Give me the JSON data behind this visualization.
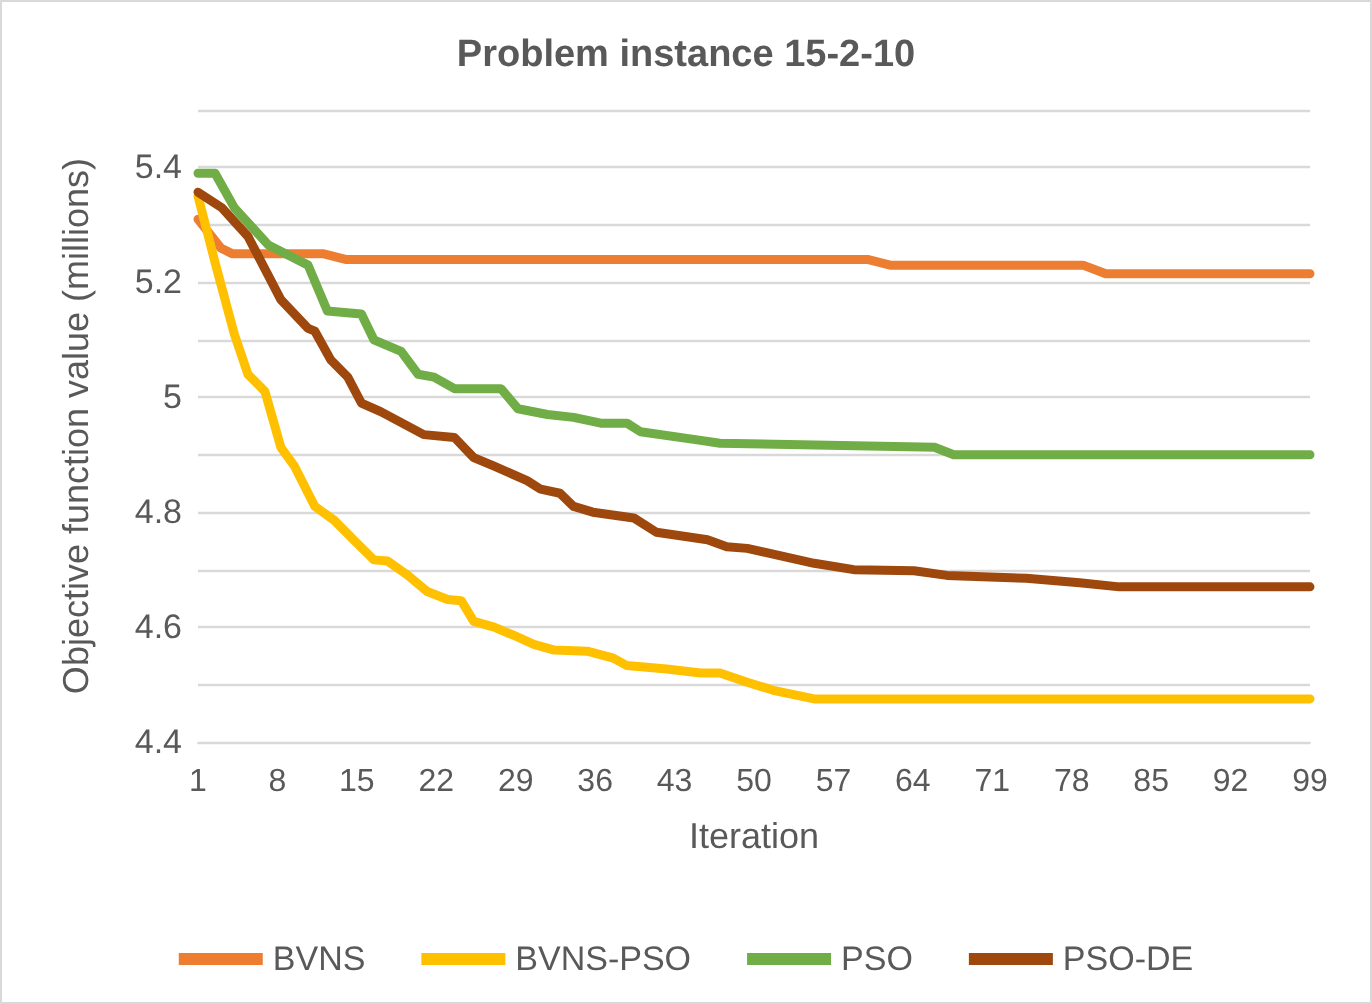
{
  "chart_data": {
    "type": "line",
    "title": "Problem instance 15-2-10",
    "xlabel": "Iteration",
    "ylabel": "Objective function value (millions)",
    "xlim": [
      1,
      99
    ],
    "xticks": [
      1,
      8,
      15,
      22,
      29,
      36,
      43,
      50,
      57,
      64,
      71,
      78,
      85,
      92,
      99
    ],
    "ylim": [
      4.4,
      5.5
    ],
    "yticks": [
      4.4,
      {
        "value": 4.5,
        "label": null
      },
      4.6,
      {
        "value": 4.7,
        "label": null
      },
      4.8,
      {
        "value": 4.9,
        "label": null
      },
      5,
      {
        "value": 5.1,
        "label": null
      },
      5.2,
      {
        "value": 5.3,
        "label": null
      },
      5.4,
      {
        "value": 5.5,
        "label": null
      }
    ],
    "grid": "y",
    "legend": "bottom",
    "marker": "none",
    "line_style": "solid",
    "series": [
      {
        "name": "BVNS",
        "color": "#ed7d31",
        "x": [
          1,
          3,
          4,
          12,
          14,
          60,
          62,
          79,
          81,
          99
        ],
        "values": [
          5.31,
          5.26,
          5.25,
          5.25,
          5.24,
          5.24,
          5.23,
          5.23,
          5.215,
          5.215
        ]
      },
      {
        "name": "BVNS-PSO",
        "color": "#ffc000",
        "x": [
          1,
          2.5,
          4.2,
          5.4,
          6.9,
          8.3,
          9.5,
          11.3,
          13,
          14.8,
          16.5,
          17.7,
          19.5,
          21.2,
          23,
          24.2,
          25.3,
          27.1,
          28.9,
          30.6,
          32.4,
          35.3,
          37.6,
          38.8,
          42.3,
          45.3,
          47,
          49.4,
          51.7,
          55.3,
          99
        ],
        "values": [
          5.35,
          5.235,
          5.11,
          5.04,
          5.01,
          4.913,
          4.88,
          4.81,
          4.786,
          4.75,
          4.717,
          4.715,
          4.69,
          4.662,
          4.648,
          4.646,
          4.61,
          4.6,
          4.585,
          4.57,
          4.56,
          4.558,
          4.546,
          4.533,
          4.527,
          4.52,
          4.52,
          4.504,
          4.49,
          4.475,
          4.475
        ]
      },
      {
        "name": "PSO",
        "color": "#70ad47",
        "x": [
          1,
          2.5,
          4.2,
          7.2,
          10.7,
          12.4,
          15.4,
          16.5,
          18.9,
          20.4,
          21.8,
          23.6,
          27.7,
          29.2,
          31.8,
          34.1,
          36.5,
          38.8,
          40,
          45.3,
          47,
          65.9,
          67.6,
          99
        ],
        "values": [
          5.39,
          5.39,
          5.33,
          5.265,
          5.23,
          5.15,
          5.145,
          5.1,
          5.08,
          5.04,
          5.035,
          5.015,
          5.015,
          4.98,
          4.97,
          4.965,
          4.955,
          4.955,
          4.94,
          4.925,
          4.92,
          4.913,
          4.9,
          4.9
        ]
      },
      {
        "name": "PSO-DE",
        "color": "#9e480e",
        "x": [
          1,
          3.1,
          5.4,
          8.3,
          10.7,
          11.3,
          12.7,
          14.2,
          15.4,
          17.1,
          20.9,
          23.6,
          25.3,
          27.1,
          30,
          31.2,
          32.9,
          34.1,
          35.8,
          39.4,
          41.4,
          45.9,
          47.6,
          49.4,
          55.3,
          58.8,
          64.1,
          67,
          74,
          78.7,
          82.2,
          99
        ],
        "values": [
          5.357,
          5.33,
          5.28,
          5.17,
          5.12,
          5.115,
          5.065,
          5.035,
          4.99,
          4.975,
          4.935,
          4.93,
          4.895,
          4.88,
          4.855,
          4.84,
          4.833,
          4.81,
          4.8,
          4.79,
          4.765,
          4.752,
          4.74,
          4.737,
          4.711,
          4.7,
          4.698,
          4.69,
          4.685,
          4.677,
          4.67,
          4.67
        ]
      }
    ]
  }
}
